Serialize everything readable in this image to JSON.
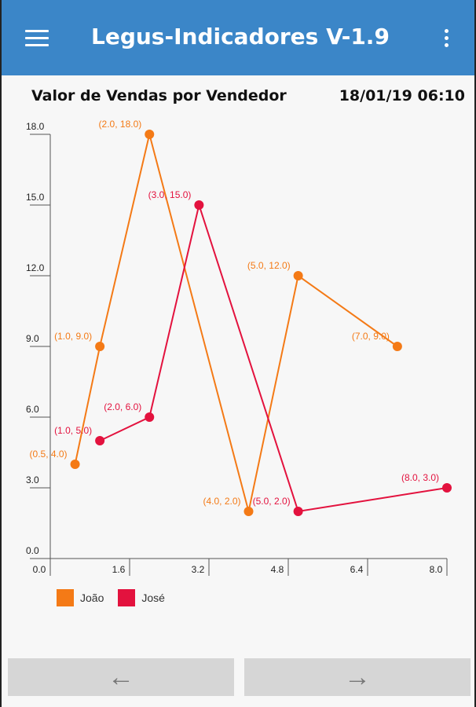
{
  "app": {
    "title": "Legus-Indicadores V-1.9",
    "menu_icon": "hamburger-menu-icon",
    "overflow_icon": "more-vert-icon",
    "bar_color": "#3b86c8"
  },
  "header": {
    "chart_title": "Valor de Vendas por Vendedor",
    "datetime": "18/01/19 06:10"
  },
  "chart_data": {
    "type": "line",
    "title": "Valor de Vendas por Vendedor",
    "xlabel": "",
    "ylabel": "",
    "xlim": [
      0.0,
      8.0
    ],
    "ylim": [
      0.0,
      18.0
    ],
    "x_ticks": [
      "0.0",
      "1.6",
      "3.2",
      "4.8",
      "6.4",
      "8.0"
    ],
    "y_ticks": [
      "0.0",
      "3.0",
      "6.0",
      "9.0",
      "12.0",
      "15.0",
      "18.0"
    ],
    "grid": false,
    "legend_position": "bottom-left",
    "series": [
      {
        "name": "João",
        "color": "#f47a16",
        "points": [
          [
            0.5,
            4.0
          ],
          [
            1.0,
            9.0
          ],
          [
            2.0,
            18.0
          ],
          [
            4.0,
            2.0
          ],
          [
            5.0,
            12.0
          ],
          [
            7.0,
            9.0
          ]
        ],
        "labels": [
          "(0.5, 4.0)",
          "(1.0, 9.0)",
          "(2.0, 18.0)",
          "(4.0, 2.0)",
          "(5.0, 12.0)",
          "(7.0, 9.0)"
        ]
      },
      {
        "name": "José",
        "color": "#e3123e",
        "points": [
          [
            1.0,
            5.0
          ],
          [
            2.0,
            6.0
          ],
          [
            3.0,
            15.0
          ],
          [
            5.0,
            2.0
          ],
          [
            8.0,
            3.0
          ]
        ],
        "labels": [
          "(1.0, 5.0)",
          "(2.0, 6.0)",
          "(3.0, 15.0)",
          "(5.0, 2.0)",
          "(8.0, 3.0)"
        ]
      }
    ]
  },
  "nav": {
    "prev_icon": "arrow-back-icon",
    "next_icon": "arrow-forward-icon",
    "prev_glyph": "←",
    "next_glyph": "→"
  }
}
